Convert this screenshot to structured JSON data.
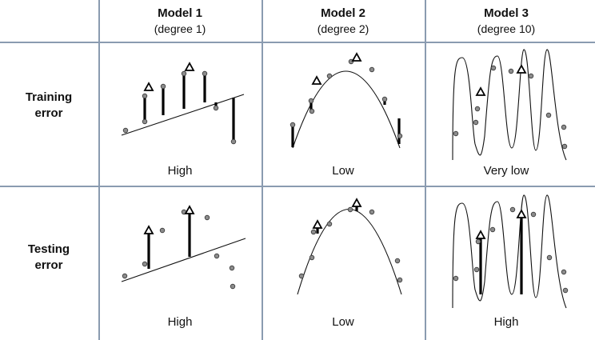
{
  "columns": [
    {
      "title": "Model 1",
      "subtitle": "(degree 1)"
    },
    {
      "title": "Model 2",
      "subtitle": "(degree 2)"
    },
    {
      "title": "Model 3",
      "subtitle": "(degree 10)"
    }
  ],
  "rows": [
    {
      "label_line1": "Training",
      "label_line2": "error",
      "cells": [
        "High",
        "Low",
        "Very low"
      ]
    },
    {
      "label_line1": "Testing",
      "label_line2": "error",
      "cells": [
        "High",
        "Low",
        "High"
      ]
    }
  ],
  "colors": {
    "grid": "#8a9bb0",
    "point": "#8c8c8c",
    "ink": "#000000"
  }
}
